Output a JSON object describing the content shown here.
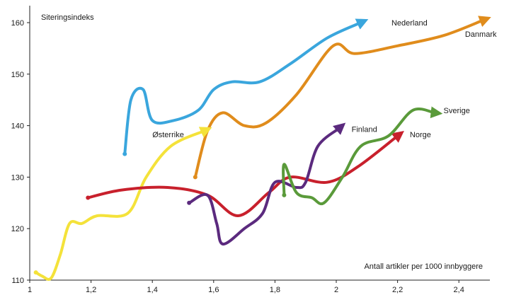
{
  "chart_data": {
    "type": "line",
    "ylabel": "Siteringsindeks",
    "xlabel": "Antall artikler per 1000 innbyggere",
    "xlim": [
      1,
      2.5
    ],
    "ylim": [
      110,
      162
    ],
    "x_ticks": [
      "1",
      "1,2",
      "1,4",
      "1,6",
      "1,8",
      "2",
      "2,2",
      "2,4"
    ],
    "y_ticks": [
      "110",
      "120",
      "130",
      "140",
      "150",
      "160"
    ],
    "grid": false,
    "legend": "none",
    "series": [
      {
        "name": "Nederland",
        "color": "#3aa6dd",
        "points": [
          [
            1.31,
            134.5
          ],
          [
            1.33,
            145
          ],
          [
            1.37,
            147
          ],
          [
            1.4,
            141
          ],
          [
            1.47,
            141
          ],
          [
            1.55,
            143
          ],
          [
            1.6,
            147
          ],
          [
            1.66,
            148.5
          ],
          [
            1.75,
            148.5
          ],
          [
            1.85,
            152
          ],
          [
            1.97,
            157
          ],
          [
            2.08,
            160
          ]
        ]
      },
      {
        "name": "Danmark",
        "color": "#e08c1c",
        "points": [
          [
            1.54,
            130
          ],
          [
            1.58,
            139
          ],
          [
            1.63,
            142.5
          ],
          [
            1.7,
            140
          ],
          [
            1.77,
            140.5
          ],
          [
            1.87,
            146
          ],
          [
            1.99,
            155.5
          ],
          [
            2.06,
            154
          ],
          [
            2.2,
            155.5
          ],
          [
            2.35,
            157.5
          ],
          [
            2.48,
            160.5
          ]
        ]
      },
      {
        "name": "Østerrike",
        "color": "#f4e23a",
        "points": [
          [
            1.02,
            111.5
          ],
          [
            1.04,
            110.8
          ],
          [
            1.07,
            110.4
          ],
          [
            1.1,
            115
          ],
          [
            1.13,
            121
          ],
          [
            1.17,
            121
          ],
          [
            1.22,
            122.5
          ],
          [
            1.32,
            123
          ],
          [
            1.38,
            130
          ],
          [
            1.46,
            136
          ],
          [
            1.57,
            139
          ]
        ]
      },
      {
        "name": "Norge",
        "color": "#c8202c",
        "points": [
          [
            1.19,
            126
          ],
          [
            1.3,
            127.5
          ],
          [
            1.45,
            128
          ],
          [
            1.58,
            126.5
          ],
          [
            1.68,
            122.5
          ],
          [
            1.78,
            127
          ],
          [
            1.85,
            130
          ],
          [
            1.97,
            129
          ],
          [
            2.07,
            132
          ],
          [
            2.2,
            138
          ]
        ]
      },
      {
        "name": "Finland",
        "color": "#5b2a7e",
        "points": [
          [
            1.52,
            125
          ],
          [
            1.58,
            126.5
          ],
          [
            1.61,
            121
          ],
          [
            1.63,
            117
          ],
          [
            1.7,
            120
          ],
          [
            1.76,
            123
          ],
          [
            1.8,
            129
          ],
          [
            1.87,
            128
          ],
          [
            1.9,
            129
          ],
          [
            1.94,
            136
          ],
          [
            2.01,
            139.5
          ]
        ]
      },
      {
        "name": "Sverige",
        "color": "#5a9a3a",
        "points": [
          [
            1.83,
            126.5
          ],
          [
            1.83,
            132.5
          ],
          [
            1.87,
            127
          ],
          [
            1.92,
            126
          ],
          [
            1.96,
            125
          ],
          [
            2.02,
            130
          ],
          [
            2.08,
            136
          ],
          [
            2.17,
            138
          ],
          [
            2.25,
            143
          ],
          [
            2.32,
            142.5
          ]
        ]
      }
    ],
    "annotations": [
      {
        "text": "Nederland",
        "x": 2.18,
        "y": 160
      },
      {
        "text": "Danmark",
        "x": 2.42,
        "y": 157.8
      },
      {
        "text": "Østerrike",
        "x": 1.4,
        "y": 138.3
      },
      {
        "text": "Finland",
        "x": 2.05,
        "y": 139.3
      },
      {
        "text": "Norge",
        "x": 2.24,
        "y": 138.3
      },
      {
        "text": "Sverige",
        "x": 2.35,
        "y": 143
      }
    ]
  }
}
